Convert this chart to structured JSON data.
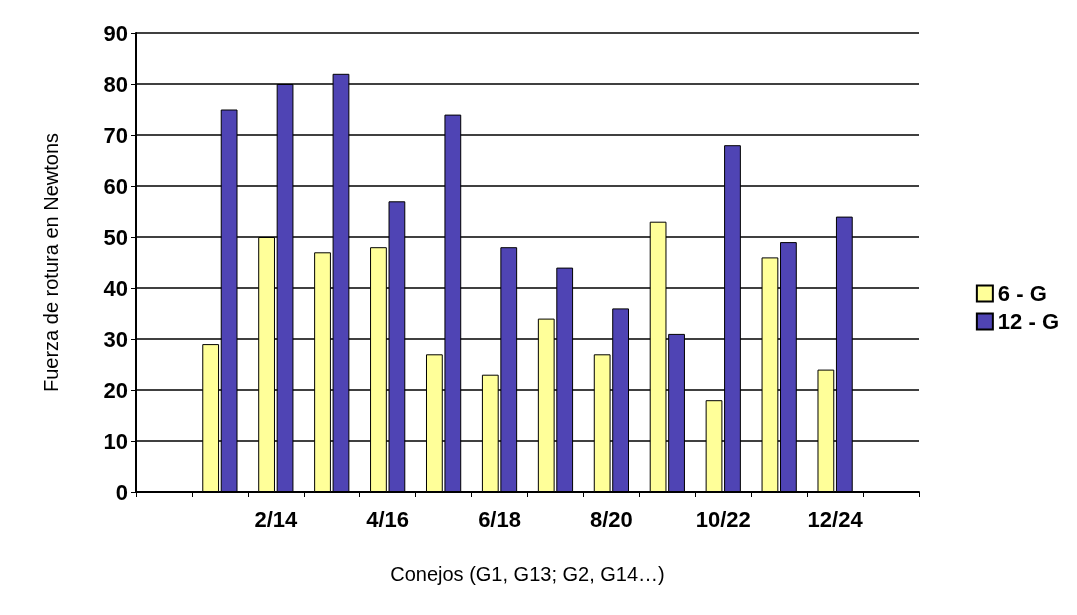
{
  "chart_data": {
    "type": "bar",
    "xlabel": "Conejos (G1, G13; G2, G14…)",
    "ylabel": "Fuerza de rotura en Newtons",
    "categories": [
      null,
      null,
      "2/14",
      null,
      "4/16",
      null,
      "6/18",
      null,
      "8/20",
      null,
      "10/22",
      null,
      "12/24",
      null
    ],
    "series": [
      {
        "name": "6 - G",
        "color": "#ffff99",
        "values": [
          null,
          29,
          50,
          47,
          48,
          27,
          23,
          34,
          27,
          53,
          18,
          46,
          24,
          null
        ]
      },
      {
        "name": "12 - G",
        "color": "#4f44b4",
        "values": [
          null,
          75,
          80,
          82,
          57,
          74,
          48,
          44,
          36,
          31,
          68,
          49,
          54,
          null
        ]
      }
    ],
    "ylim": [
      0,
      90
    ],
    "yticks": [
      0,
      10,
      20,
      30,
      40,
      50,
      60,
      70,
      80,
      90
    ],
    "grid": "y",
    "legend": "right"
  }
}
